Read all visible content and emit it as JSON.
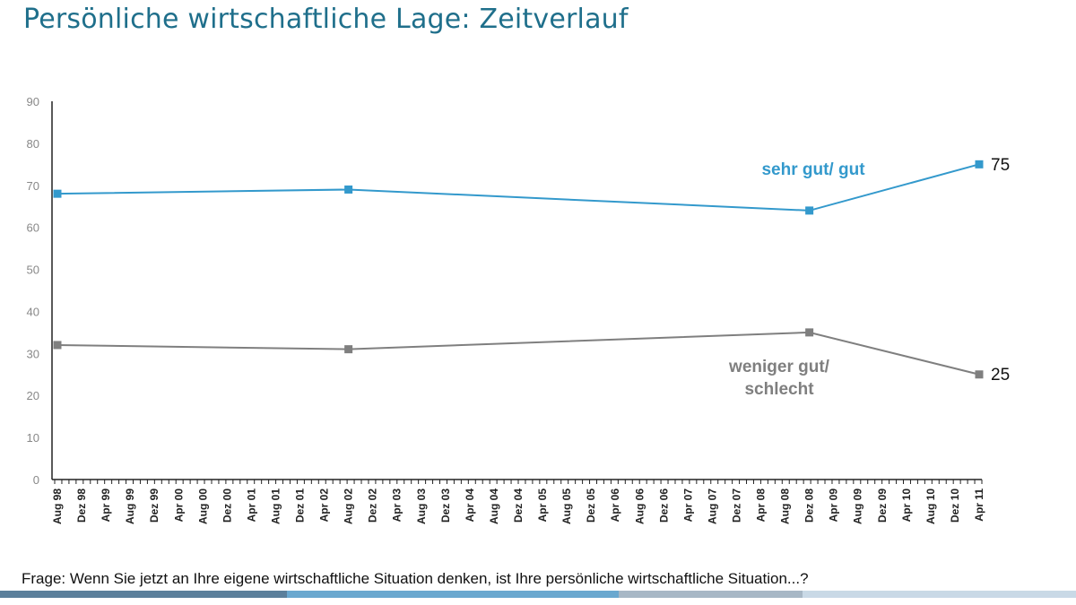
{
  "title": "Persönliche wirtschaftliche Lage: Zeitverlauf",
  "question": "Frage: Wenn Sie jetzt an Ihre eigene wirtschaftliche Situation denken, ist Ihre persönliche wirtschaftliche Situation...?",
  "chart_data": {
    "type": "line",
    "title": "Persönliche wirtschaftliche Lage: Zeitverlauf",
    "xlabel": "",
    "ylabel": "",
    "ylim": [
      0,
      90
    ],
    "yticks": [
      0,
      10,
      20,
      30,
      40,
      50,
      60,
      70,
      80,
      90
    ],
    "grid": false,
    "categories": [
      "Aug 98",
      "Dez 98",
      "Apr 99",
      "Aug 99",
      "Dez 99",
      "Apr 00",
      "Aug 00",
      "Dez 00",
      "Apr 01",
      "Aug 01",
      "Dez 01",
      "Apr 02",
      "Aug 02",
      "Dez 02",
      "Apr 03",
      "Aug 03",
      "Dez 03",
      "Apr 04",
      "Aug 04",
      "Dez 04",
      "Apr 05",
      "Aug 05",
      "Dez 05",
      "Apr 06",
      "Aug 06",
      "Dez 06",
      "Apr 07",
      "Aug 07",
      "Dez 07",
      "Apr 08",
      "Aug 08",
      "Dez 08",
      "Apr 09",
      "Aug 09",
      "Dez 09",
      "Apr 10",
      "Aug 10",
      "Dez 10",
      "Apr 11"
    ],
    "series": [
      {
        "name": "sehr gut/ gut",
        "label_lines": [
          "sehr gut/ gut"
        ],
        "color": "#3399cc",
        "points": [
          {
            "x": "Aug 98",
            "y": 68
          },
          {
            "x": "Aug 02",
            "y": 69
          },
          {
            "x": "Dez 08",
            "y": 64
          },
          {
            "x": "Apr 11",
            "y": 75
          }
        ],
        "end_label": "75"
      },
      {
        "name": "weniger gut/ schlecht",
        "label_lines": [
          "weniger gut/",
          "schlecht"
        ],
        "color": "#7f7f7f",
        "points": [
          {
            "x": "Aug 98",
            "y": 32
          },
          {
            "x": "Aug 02",
            "y": 31
          },
          {
            "x": "Dez 08",
            "y": 35
          },
          {
            "x": "Apr 11",
            "y": 25
          }
        ],
        "end_label": "25"
      }
    ]
  }
}
